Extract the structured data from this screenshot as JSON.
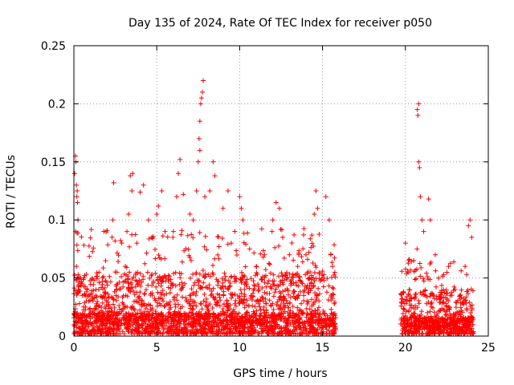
{
  "chart_data": {
    "type": "scatter",
    "title": "Day 135 of 2024, Rate Of TEC Index for receiver p050",
    "xlabel": "GPS time / hours",
    "ylabel": "ROTI / TECUs",
    "xlim": [
      0,
      25
    ],
    "ylim": [
      0,
      0.25
    ],
    "xticks": [
      0,
      5,
      10,
      15,
      20,
      25
    ],
    "yticks": [
      0,
      0.05,
      0.1,
      0.15,
      0.2,
      0.25
    ],
    "ytick_labels": [
      "0",
      "0.05",
      "0.1",
      "0.15",
      "0.2",
      "0.25"
    ],
    "grid": true,
    "marker": "+",
    "color": "#ff0000",
    "series": [
      {
        "values_note": "",
        "points": [
          [
            0.05,
            0.14
          ],
          [
            0.1,
            0.155
          ],
          [
            0.12,
            0.15
          ],
          [
            0.15,
            0.13
          ],
          [
            0.18,
            0.12
          ],
          [
            0.2,
            0.125
          ],
          [
            0.22,
            0.115
          ],
          [
            0.25,
            0.1
          ],
          [
            0.1,
            0.09
          ],
          [
            0.15,
            0.06
          ],
          [
            0.2,
            0.05
          ],
          [
            0.3,
            0.04
          ],
          [
            0.4,
            0.05
          ],
          [
            0.5,
            0.045
          ],
          [
            0.6,
            0.05
          ],
          [
            0.7,
            0.035
          ],
          [
            0.8,
            0.04
          ],
          [
            0.9,
            0.03
          ],
          [
            1.0,
            0.02
          ],
          [
            2.3,
            0.085
          ],
          [
            2.35,
            0.1
          ],
          [
            2.4,
            0.132
          ],
          [
            2.6,
            0.055
          ],
          [
            3.1,
            0.06
          ],
          [
            3.2,
            0.09
          ],
          [
            3.3,
            0.105
          ],
          [
            3.4,
            0.138
          ],
          [
            3.5,
            0.125
          ],
          [
            3.55,
            0.14
          ],
          [
            3.8,
            0.08
          ],
          [
            4.0,
            0.124
          ],
          [
            4.2,
            0.13
          ],
          [
            4.5,
            0.1
          ],
          [
            4.7,
            0.085
          ],
          [
            5.0,
            0.105
          ],
          [
            5.1,
            0.112
          ],
          [
            5.3,
            0.125
          ],
          [
            5.5,
            0.09
          ],
          [
            6.0,
            0.09
          ],
          [
            6.2,
            0.12
          ],
          [
            6.3,
            0.14
          ],
          [
            6.4,
            0.152
          ],
          [
            6.6,
            0.122
          ],
          [
            7.0,
            0.105
          ],
          [
            7.2,
            0.1
          ],
          [
            7.4,
            0.125
          ],
          [
            7.5,
            0.15
          ],
          [
            7.55,
            0.17
          ],
          [
            7.6,
            0.185
          ],
          [
            7.65,
            0.2
          ],
          [
            7.7,
            0.205
          ],
          [
            7.75,
            0.21
          ],
          [
            7.8,
            0.22
          ],
          [
            7.6,
            0.16
          ],
          [
            7.9,
            0.12
          ],
          [
            8.2,
            0.125
          ],
          [
            8.4,
            0.15
          ],
          [
            8.5,
            0.138
          ],
          [
            9.0,
            0.11
          ],
          [
            9.3,
            0.125
          ],
          [
            9.5,
            0.08
          ],
          [
            10.0,
            0.12
          ],
          [
            10.1,
            0.11
          ],
          [
            10.2,
            0.1
          ],
          [
            10.6,
            0.075
          ],
          [
            11.0,
            0.06
          ],
          [
            11.5,
            0.07
          ],
          [
            12.0,
            0.1
          ],
          [
            12.2,
            0.115
          ],
          [
            12.4,
            0.11
          ],
          [
            12.6,
            0.085
          ],
          [
            13.0,
            0.07
          ],
          [
            13.5,
            0.06
          ],
          [
            14.0,
            0.07
          ],
          [
            14.5,
            0.105
          ],
          [
            14.6,
            0.125
          ],
          [
            14.7,
            0.11
          ],
          [
            15.2,
            0.12
          ],
          [
            15.4,
            0.1
          ],
          [
            15.5,
            0.07
          ],
          [
            15.6,
            0.06
          ],
          [
            20.0,
            0.08
          ],
          [
            20.2,
            0.055
          ],
          [
            20.5,
            0.065
          ],
          [
            20.7,
            0.075
          ],
          [
            20.72,
            0.195
          ],
          [
            20.75,
            0.19
          ],
          [
            20.8,
            0.2
          ],
          [
            20.8,
            0.15
          ],
          [
            20.85,
            0.145
          ],
          [
            20.9,
            0.12
          ],
          [
            21.0,
            0.1
          ],
          [
            21.1,
            0.09
          ],
          [
            21.4,
            0.118
          ],
          [
            21.5,
            0.1
          ],
          [
            21.8,
            0.07
          ],
          [
            22.0,
            0.05
          ],
          [
            22.3,
            0.04
          ],
          [
            22.6,
            0.06
          ],
          [
            23.0,
            0.04
          ],
          [
            23.3,
            0.035
          ],
          [
            23.6,
            0.06
          ],
          [
            23.8,
            0.095
          ],
          [
            23.9,
            0.1
          ],
          [
            24.0,
            0.085
          ]
        ],
        "segments": [
          {
            "x0": 0.0,
            "x1": 15.8,
            "ymin": 0.0,
            "ybase": 0.01,
            "ypeak": 0.055
          },
          {
            "x0": 19.7,
            "x1": 24.1,
            "ymin": 0.0,
            "ybase": 0.008,
            "ypeak": 0.04
          }
        ]
      }
    ]
  }
}
